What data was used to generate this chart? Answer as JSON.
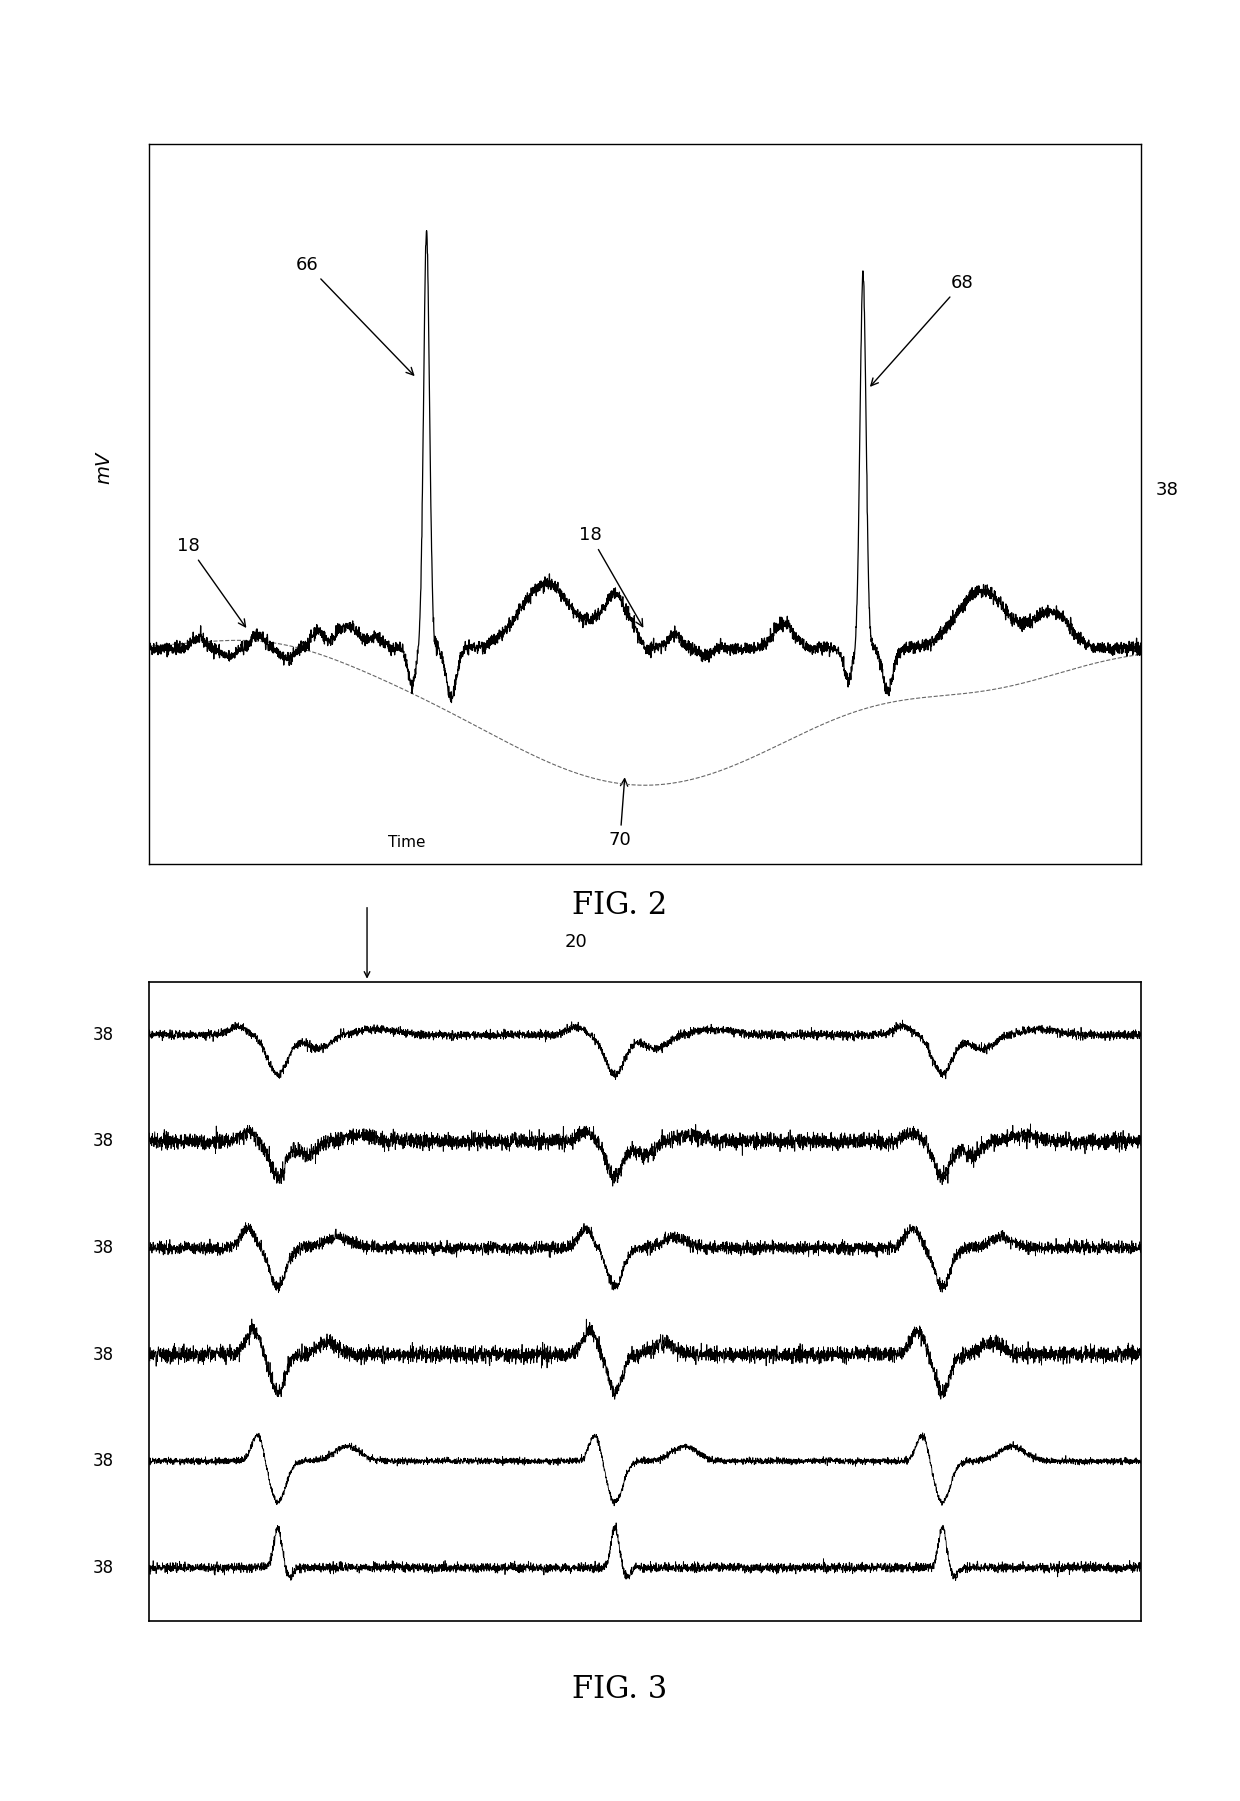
{
  "fig2_title": "FIG. 2",
  "fig3_title": "FIG. 3",
  "background_color": "#ffffff",
  "line_color": "#000000",
  "dashed_line_color": "#888888",
  "label_38": "38",
  "label_18": "18",
  "label_66": "66",
  "label_68": "68",
  "label_70": "70",
  "label_20": "20",
  "mv_label": "mV",
  "time_label": "Time"
}
